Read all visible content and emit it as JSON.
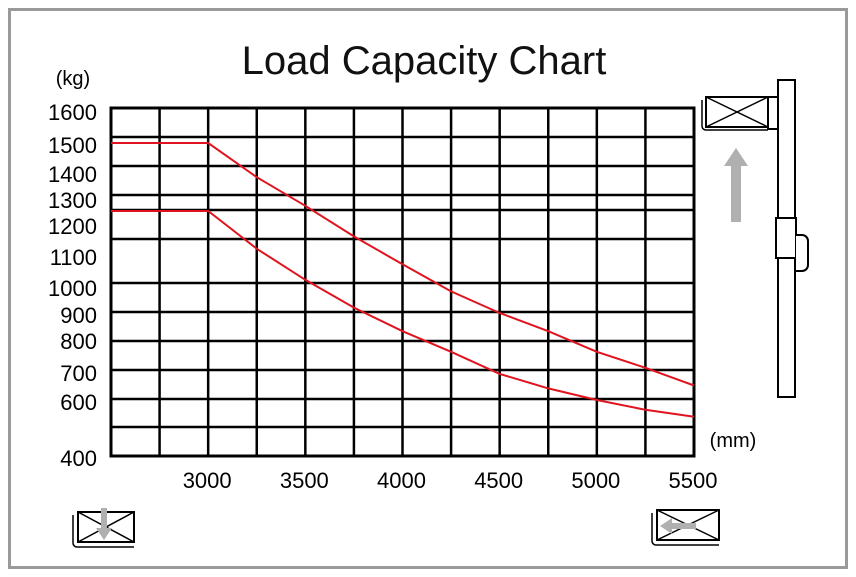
{
  "chart_data": {
    "type": "line",
    "title": "Load Capacity Chart",
    "ylabel": "(kg)",
    "xlabel": "(mm)",
    "xlim": [
      2500,
      5500
    ],
    "ylim": [
      400,
      1600
    ],
    "x_ticks": [
      3000,
      3500,
      4000,
      4500,
      5000,
      5500
    ],
    "x_tick_labels": [
      "3000",
      "3500",
      "4000",
      "4500",
      "5000",
      "5500"
    ],
    "y_tick_labels": [
      "1600",
      "1500",
      "1400",
      "1300",
      "1200",
      "1100",
      "1000",
      "900",
      "800",
      "700",
      "600",
      "400"
    ],
    "grid": true,
    "series": [
      {
        "x": [
          2500,
          3000,
          3250,
          3500,
          3750,
          4000,
          4250,
          4500,
          4750,
          5000,
          5250,
          5500
        ],
        "values": [
          1500,
          1500,
          1380,
          1270,
          1160,
          1070,
          980,
          900,
          830,
          760,
          710,
          650
        ]
      },
      {
        "x": [
          2500,
          3000,
          3250,
          3500,
          3750,
          4000,
          4250,
          4500,
          4750,
          5000,
          5250,
          5500
        ],
        "values": [
          1250,
          1250,
          1120,
          1020,
          920,
          830,
          760,
          690,
          640,
          600,
          565,
          540
        ]
      }
    ],
    "line_color": "#e0141e",
    "grid_color": "#000000"
  },
  "icons": [
    "pallet-raised-icon",
    "up-arrow-icon",
    "mast-icon",
    "pallet-lowered-icon",
    "pallet-extend-icon"
  ],
  "colors": {
    "frame": "#9a9a9a",
    "arrow": "#b0b0b0"
  }
}
